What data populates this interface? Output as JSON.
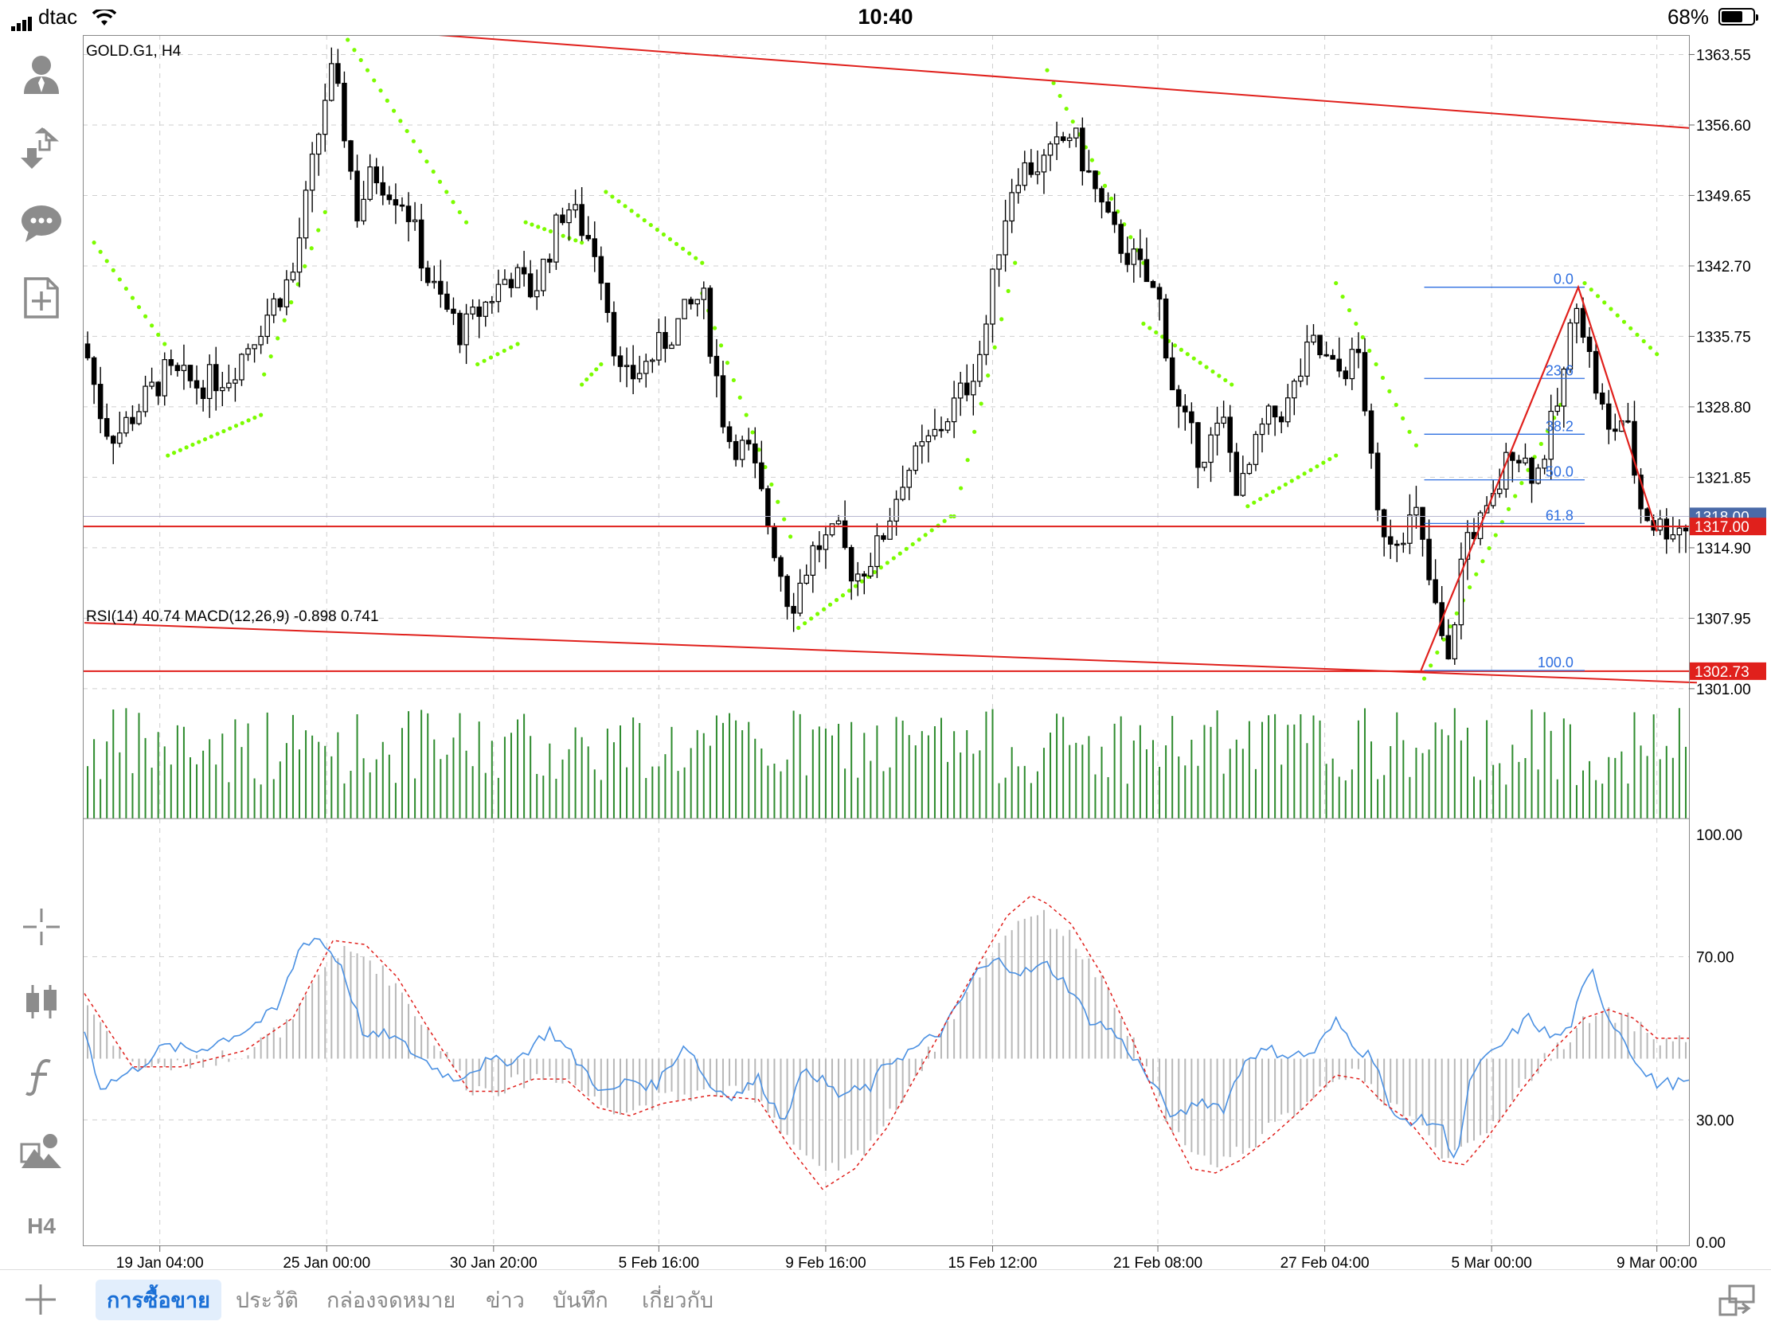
{
  "status_bar": {
    "carrier": "dtac",
    "time": "10:40",
    "battery_percent": "68%",
    "battery_level": 0.68
  },
  "toolbar_icons": {
    "account": "account-icon",
    "trade": "trade-icon",
    "chat": "chat-icon",
    "new_order": "new-document-icon",
    "crosshair": "crosshair-icon",
    "chart_type": "candlestick-icon",
    "indicators": "function-icon",
    "objects": "objects-icon",
    "timeframe": "H4"
  },
  "colors": {
    "bull": "#ffffff",
    "bear": "#000000",
    "parabolic_sar": "#7cfc00",
    "trendline": "#e0201c",
    "fib": "#2f6fe0",
    "volume": "#2e8b2e",
    "rsi": "#4a90e2",
    "macd_signal": "#e0201c",
    "macd_hist": "#b8b8b8",
    "active_tab": "#1a6fd6"
  },
  "chart_data": {
    "type": "candlestick",
    "main": {
      "title": "GOLD.G1, H4",
      "price_ticks": [
        "1363.55",
        "1356.60",
        "1349.65",
        "1342.70",
        "1335.75",
        "1328.80",
        "1321.85",
        "1314.90",
        "1307.95",
        "1301.00"
      ],
      "price_range": [
        1299.5,
        1365.0
      ],
      "price_labels": [
        {
          "text": "1318.00",
          "price": 1318.0,
          "color": "#4a6aa8"
        },
        {
          "text": "1317.00",
          "price": 1317.0,
          "color": "#e0201c"
        },
        {
          "text": "1302.73",
          "price": 1302.73,
          "color": "#e0201c"
        }
      ],
      "horizontal_lines": [
        1318.0,
        1317.0,
        1302.73
      ],
      "fib_levels": [
        {
          "label": "0.0",
          "price": 1340.6
        },
        {
          "label": "23.6",
          "price": 1331.6
        },
        {
          "label": "38.2",
          "price": 1326.1
        },
        {
          "label": "50.0",
          "price": 1321.6
        },
        {
          "label": "61.8",
          "price": 1317.3
        },
        {
          "label": "100.0",
          "price": 1302.8
        }
      ],
      "channel_upper": [
        [
          0,
          1366.2
        ],
        [
          1.0,
          1356.3
        ]
      ],
      "channel_lower": [
        [
          -0.0,
          1307.5
        ],
        [
          1.0,
          1301.6
        ]
      ],
      "triangle": [
        [
          0.833,
          1302.8
        ],
        [
          0.931,
          1340.6
        ],
        [
          0.98,
          1316.5
        ]
      ],
      "time_labels": [
        {
          "label": "19 Jan 04:00",
          "x": 0.047
        },
        {
          "label": "25 Jan 00:00",
          "x": 0.151
        },
        {
          "label": "30 Jan 20:00",
          "x": 0.255
        },
        {
          "label": "5 Feb 16:00",
          "x": 0.358
        },
        {
          "label": "9 Feb 16:00",
          "x": 0.462
        },
        {
          "label": "15 Feb 12:00",
          "x": 0.566
        },
        {
          "label": "21 Feb 08:00",
          "x": 0.669
        },
        {
          "label": "27 Feb 04:00",
          "x": 0.773
        },
        {
          "label": "5 Mar 00:00",
          "x": 0.877
        },
        {
          "label": "9 Mar 00:00",
          "x": 0.98
        }
      ],
      "path_keypoints": [
        [
          0,
          1335
        ],
        [
          0.012,
          1327
        ],
        [
          0.02,
          1326
        ],
        [
          0.035,
          1329
        ],
        [
          0.05,
          1332
        ],
        [
          0.07,
          1331
        ],
        [
          0.09,
          1332
        ],
        [
          0.11,
          1337
        ],
        [
          0.13,
          1342
        ],
        [
          0.145,
          1355
        ],
        [
          0.153,
          1362
        ],
        [
          0.16,
          1358
        ],
        [
          0.17,
          1348
        ],
        [
          0.18,
          1352
        ],
        [
          0.2,
          1349
        ],
        [
          0.215,
          1341
        ],
        [
          0.235,
          1336
        ],
        [
          0.25,
          1339
        ],
        [
          0.265,
          1342
        ],
        [
          0.28,
          1340
        ],
        [
          0.3,
          1349
        ],
        [
          0.32,
          1344
        ],
        [
          0.335,
          1331
        ],
        [
          0.35,
          1333
        ],
        [
          0.37,
          1337
        ],
        [
          0.385,
          1340
        ],
        [
          0.4,
          1326
        ],
        [
          0.415,
          1324
        ],
        [
          0.425,
          1318
        ],
        [
          0.44,
          1309
        ],
        [
          0.455,
          1315
        ],
        [
          0.47,
          1316
        ],
        [
          0.48,
          1312
        ],
        [
          0.495,
          1315
        ],
        [
          0.51,
          1322
        ],
        [
          0.53,
          1326
        ],
        [
          0.55,
          1331
        ],
        [
          0.56,
          1335
        ],
        [
          0.57,
          1345
        ],
        [
          0.58,
          1352
        ],
        [
          0.6,
          1353
        ],
        [
          0.615,
          1356
        ],
        [
          0.625,
          1352
        ],
        [
          0.64,
          1346
        ],
        [
          0.655,
          1343
        ],
        [
          0.67,
          1339
        ],
        [
          0.68,
          1329
        ],
        [
          0.695,
          1324
        ],
        [
          0.71,
          1327
        ],
        [
          0.72,
          1320
        ],
        [
          0.735,
          1327
        ],
        [
          0.75,
          1329
        ],
        [
          0.765,
          1335
        ],
        [
          0.78,
          1332
        ],
        [
          0.795,
          1334
        ],
        [
          0.805,
          1318
        ],
        [
          0.815,
          1316
        ],
        [
          0.83,
          1318
        ],
        [
          0.84,
          1310
        ],
        [
          0.85,
          1303
        ],
        [
          0.86,
          1316
        ],
        [
          0.875,
          1318
        ],
        [
          0.89,
          1325
        ],
        [
          0.905,
          1322
        ],
        [
          0.92,
          1330
        ],
        [
          0.93,
          1340
        ],
        [
          0.94,
          1332
        ],
        [
          0.95,
          1326
        ],
        [
          0.96,
          1328
        ],
        [
          0.97,
          1319
        ],
        [
          0.98,
          1317
        ]
      ],
      "sar_segments": [
        {
          "x": [
            0.006,
            0.05
          ],
          "y": [
            1345,
            1335
          ]
        },
        {
          "x": [
            0.052,
            0.11
          ],
          "y": [
            1324,
            1328
          ]
        },
        {
          "x": [
            0.112,
            0.15
          ],
          "y": [
            1332,
            1348
          ]
        },
        {
          "x": [
            0.16,
            0.238
          ],
          "y": [
            1366,
            1347
          ]
        },
        {
          "x": [
            0.245,
            0.27
          ],
          "y": [
            1333,
            1335
          ]
        },
        {
          "x": [
            0.275,
            0.31
          ],
          "y": [
            1347,
            1345
          ]
        },
        {
          "x": [
            0.31,
            0.322
          ],
          "y": [
            1331,
            1333
          ]
        },
        {
          "x": [
            0.325,
            0.385
          ],
          "y": [
            1350,
            1343
          ]
        },
        {
          "x": [
            0.385,
            0.44
          ],
          "y": [
            1340,
            1316
          ]
        },
        {
          "x": [
            0.445,
            0.54
          ],
          "y": [
            1307,
            1318
          ]
        },
        {
          "x": [
            0.542,
            0.58
          ],
          "y": [
            1318,
            1343
          ]
        },
        {
          "x": [
            0.6,
            0.66
          ],
          "y": [
            1362,
            1343
          ]
        },
        {
          "x": [
            0.66,
            0.715
          ],
          "y": [
            1337,
            1331
          ]
        },
        {
          "x": [
            0.725,
            0.78
          ],
          "y": [
            1319,
            1324
          ]
        },
        {
          "x": [
            0.78,
            0.83
          ],
          "y": [
            1341,
            1325
          ]
        },
        {
          "x": [
            0.835,
            0.92
          ],
          "y": [
            1302,
            1329
          ]
        },
        {
          "x": [
            0.935,
            0.98
          ],
          "y": [
            1341,
            1334
          ]
        }
      ]
    },
    "volume": {
      "height_range": [
        0.3,
        1.0
      ]
    },
    "oscillator": {
      "label": "RSI(14) 40.74 MACD(12,26,9) -0.898 0.741",
      "rsi_value": 40.74,
      "macd_value": -0.898,
      "signal_value": 0.741,
      "ticks": [
        "100.00",
        "70.00",
        "30.00",
        "0.00"
      ],
      "range": [
        0,
        100
      ],
      "rsi_keypoints": [
        [
          0,
          52
        ],
        [
          0.01,
          38
        ],
        [
          0.03,
          42
        ],
        [
          0.05,
          48
        ],
        [
          0.07,
          47
        ],
        [
          0.1,
          52
        ],
        [
          0.12,
          57
        ],
        [
          0.135,
          73
        ],
        [
          0.145,
          75
        ],
        [
          0.16,
          68
        ],
        [
          0.175,
          50
        ],
        [
          0.19,
          51
        ],
        [
          0.21,
          45
        ],
        [
          0.23,
          40
        ],
        [
          0.25,
          44
        ],
        [
          0.27,
          45
        ],
        [
          0.29,
          52
        ],
        [
          0.31,
          43
        ],
        [
          0.325,
          36
        ],
        [
          0.34,
          40
        ],
        [
          0.355,
          38
        ],
        [
          0.375,
          49
        ],
        [
          0.39,
          38
        ],
        [
          0.405,
          36
        ],
        [
          0.42,
          40
        ],
        [
          0.435,
          30
        ],
        [
          0.45,
          43
        ],
        [
          0.47,
          36
        ],
        [
          0.49,
          38
        ],
        [
          0.5,
          44
        ],
        [
          0.52,
          48
        ],
        [
          0.535,
          52
        ],
        [
          0.545,
          58
        ],
        [
          0.555,
          66
        ],
        [
          0.57,
          69
        ],
        [
          0.585,
          66
        ],
        [
          0.6,
          68
        ],
        [
          0.615,
          62
        ],
        [
          0.625,
          55
        ],
        [
          0.64,
          52
        ],
        [
          0.655,
          45
        ],
        [
          0.67,
          36
        ],
        [
          0.68,
          30
        ],
        [
          0.695,
          35
        ],
        [
          0.71,
          33
        ],
        [
          0.725,
          46
        ],
        [
          0.74,
          47
        ],
        [
          0.75,
          46
        ],
        [
          0.765,
          46
        ],
        [
          0.78,
          54
        ],
        [
          0.795,
          47
        ],
        [
          0.805,
          45
        ],
        [
          0.815,
          30
        ],
        [
          0.83,
          30
        ],
        [
          0.845,
          29
        ],
        [
          0.855,
          20
        ],
        [
          0.865,
          42
        ],
        [
          0.88,
          47
        ],
        [
          0.9,
          55
        ],
        [
          0.915,
          50
        ],
        [
          0.925,
          52
        ],
        [
          0.935,
          63
        ],
        [
          0.94,
          66
        ],
        [
          0.95,
          55
        ],
        [
          0.96,
          50
        ],
        [
          0.97,
          42
        ],
        [
          0.98,
          39
        ]
      ],
      "signal_keypoints": [
        [
          0,
          61
        ],
        [
          0.03,
          43
        ],
        [
          0.06,
          43
        ],
        [
          0.1,
          47
        ],
        [
          0.13,
          55
        ],
        [
          0.155,
          74
        ],
        [
          0.175,
          73
        ],
        [
          0.195,
          65
        ],
        [
          0.215,
          52
        ],
        [
          0.24,
          37
        ],
        [
          0.26,
          37
        ],
        [
          0.28,
          40
        ],
        [
          0.3,
          40
        ],
        [
          0.32,
          33
        ],
        [
          0.34,
          31
        ],
        [
          0.36,
          34
        ],
        [
          0.39,
          36
        ],
        [
          0.42,
          35
        ],
        [
          0.44,
          23
        ],
        [
          0.46,
          13
        ],
        [
          0.48,
          18
        ],
        [
          0.5,
          28
        ],
        [
          0.52,
          42
        ],
        [
          0.54,
          56
        ],
        [
          0.56,
          70
        ],
        [
          0.575,
          80
        ],
        [
          0.59,
          85
        ],
        [
          0.6,
          83
        ],
        [
          0.615,
          78
        ],
        [
          0.635,
          65
        ],
        [
          0.655,
          48
        ],
        [
          0.67,
          33
        ],
        [
          0.69,
          18
        ],
        [
          0.705,
          17
        ],
        [
          0.72,
          20
        ],
        [
          0.74,
          26
        ],
        [
          0.76,
          33
        ],
        [
          0.78,
          41
        ],
        [
          0.795,
          40
        ],
        [
          0.81,
          34
        ],
        [
          0.825,
          30
        ],
        [
          0.845,
          20
        ],
        [
          0.86,
          19
        ],
        [
          0.875,
          26
        ],
        [
          0.895,
          37
        ],
        [
          0.915,
          47
        ],
        [
          0.935,
          55
        ],
        [
          0.95,
          57
        ],
        [
          0.965,
          55
        ],
        [
          0.98,
          50
        ]
      ],
      "hist_baseline": 45
    }
  },
  "bottom_tabs": [
    {
      "label": "การซื้อขาย",
      "active": true
    },
    {
      "label": "ประวัติ",
      "active": false
    },
    {
      "label": "กล่องจดหมาย",
      "active": false
    },
    {
      "label": "ข่าว",
      "active": false
    },
    {
      "label": "บันทึก",
      "active": false
    },
    {
      "label": "เกี่ยวกับ",
      "active": false
    }
  ]
}
